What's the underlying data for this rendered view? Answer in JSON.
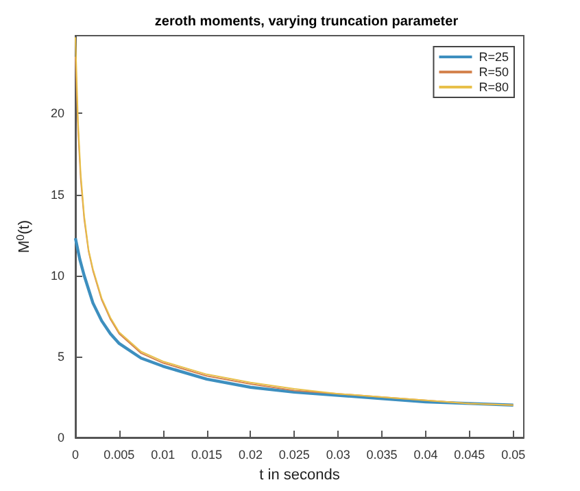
{
  "chart_data": {
    "type": "line",
    "title": "zeroth moments, varying truncation parameter",
    "xlabel": "t in seconds",
    "ylabel": "M$^{0}$(t)",
    "xlim": [
      0,
      0.0512
    ],
    "xticks": [
      0,
      0.005,
      0.01,
      0.015,
      0.02,
      0.025,
      0.03,
      0.035,
      0.04,
      0.045,
      0.05
    ],
    "ylim": [
      0,
      24.8
    ],
    "yticks": [
      0,
      5,
      10,
      15,
      20
    ],
    "grid": false,
    "legend": "top right",
    "marker": "none",
    "line_style": "solid",
    "series": [
      {
        "name": "R=25",
        "color": "#3d8fbf",
        "x": [
          0,
          0.0005,
          0.001,
          0.002,
          0.003,
          0.004,
          0.005,
          0.0075,
          0.01,
          0.015,
          0.02,
          0.025,
          0.03,
          0.035,
          0.04,
          0.045,
          0.05
        ],
        "values": [
          12.3,
          11,
          10,
          8.3,
          7.2,
          6.4,
          5.8,
          4.9,
          4.4,
          3.6,
          3.1,
          2.8,
          2.6,
          2.4,
          2.2,
          2.1,
          2.0
        ]
      },
      {
        "name": "R=50",
        "color": "#d4844f",
        "x": [
          0,
          0.0003,
          0.0006,
          0.001,
          0.0015,
          0.002,
          0.003,
          0.004,
          0.005,
          0.0075,
          0.01,
          0.015,
          0.02,
          0.025,
          0.03,
          0.035,
          0.04,
          0.045,
          0.05
        ],
        "values": [
          23.5,
          19,
          16,
          13.5,
          11.5,
          10.3,
          8.5,
          7.3,
          6.4,
          5.2,
          4.6,
          3.8,
          3.3,
          2.9,
          2.7,
          2.5,
          2.3,
          2.1,
          2.0
        ]
      },
      {
        "name": "R=80",
        "color": "#e8c04a",
        "x": [
          0,
          0.0003,
          0.0006,
          0.001,
          0.0015,
          0.002,
          0.003,
          0.004,
          0.005,
          0.0075,
          0.01,
          0.015,
          0.02,
          0.025,
          0.03,
          0.035,
          0.04,
          0.045,
          0.05
        ],
        "values": [
          24.7,
          19.5,
          16.3,
          13.7,
          11.6,
          10.4,
          8.6,
          7.4,
          6.5,
          5.3,
          4.7,
          3.9,
          3.4,
          3.0,
          2.7,
          2.5,
          2.3,
          2.1,
          2.0
        ]
      }
    ]
  }
}
